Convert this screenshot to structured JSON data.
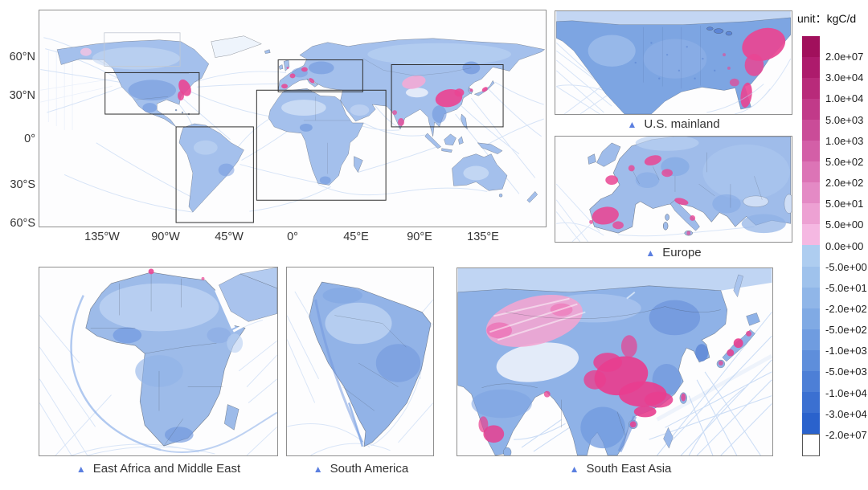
{
  "legend": {
    "unit_label": "unit：kgC/d",
    "tick_labels": [
      "2.0e+07",
      "3.0e+04",
      "1.0e+04",
      "5.0e+03",
      "1.0e+03",
      "5.0e+02",
      "2.0e+02",
      "5.0e+01",
      "5.0e+00",
      "0.0e+00",
      "-5.0e+00",
      "-5.0e+01",
      "-2.0e+02",
      "-5.0e+02",
      "-1.0e+03",
      "-5.0e+03",
      "-1.0e+04",
      "-3.0e+04",
      "-2.0e+07"
    ],
    "segment_colors": [
      "#a1105c",
      "#ad1b6c",
      "#b82a7a",
      "#c13a89",
      "#ca4c98",
      "#d35fa7",
      "#dc74b6",
      "#e48ac5",
      "#eda1d3",
      "#f5b8e2",
      "#aecdf0",
      "#9fc2ec",
      "#90b6e8",
      "#80aae4",
      "#6f9ce0",
      "#5e8edb",
      "#4d7fd6",
      "#3b70d1",
      "#2a62cc",
      "#ffffff"
    ]
  },
  "main_map": {
    "x_tick_labels": [
      "135°W",
      "90°W",
      "45°W",
      "0°",
      "45°E",
      "90°E",
      "135°E"
    ],
    "y_tick_labels": [
      "60°N",
      "30°N",
      "0°",
      "30°S",
      "60°S"
    ]
  },
  "markers": {
    "glyph": "▲"
  },
  "panels": {
    "us": {
      "label": "U.S. mainland"
    },
    "europe": {
      "label": "Europe"
    },
    "africa": {
      "label": "East Africa and Middle East"
    },
    "south_america": {
      "label": "South America"
    },
    "se_asia": {
      "label": "South East Asia"
    }
  },
  "colors": {
    "marker_blue": "#5b7fe0",
    "hotspot_pink": "#e94593",
    "land_blue": "#a3c0ec",
    "ocean_white": "#fdfdfe"
  }
}
